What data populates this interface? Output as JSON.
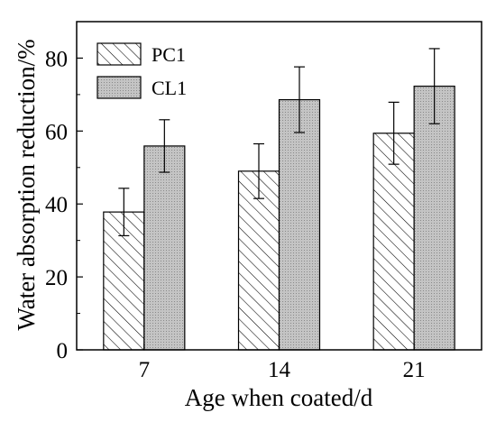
{
  "chart_data": {
    "type": "bar",
    "title": "",
    "xlabel": "Age when coated/d",
    "ylabel": "Water absorption reduction/%",
    "categories": [
      "7",
      "14",
      "21"
    ],
    "ylim": [
      0,
      90
    ],
    "yticks": [
      0,
      20,
      40,
      60,
      80
    ],
    "grid": false,
    "legend_position": "top-left",
    "series": [
      {
        "name": "PC1",
        "pattern": "diagonal-hatch",
        "color": "#ffffff",
        "values": [
          37.8,
          49.0,
          59.4
        ],
        "errors": [
          6.5,
          7.5,
          8.5
        ]
      },
      {
        "name": "CL1",
        "pattern": "dotted-gray",
        "color": "#c0c0c0",
        "values": [
          55.9,
          68.6,
          72.3
        ],
        "errors": [
          7.2,
          9.0,
          10.3
        ]
      }
    ]
  }
}
